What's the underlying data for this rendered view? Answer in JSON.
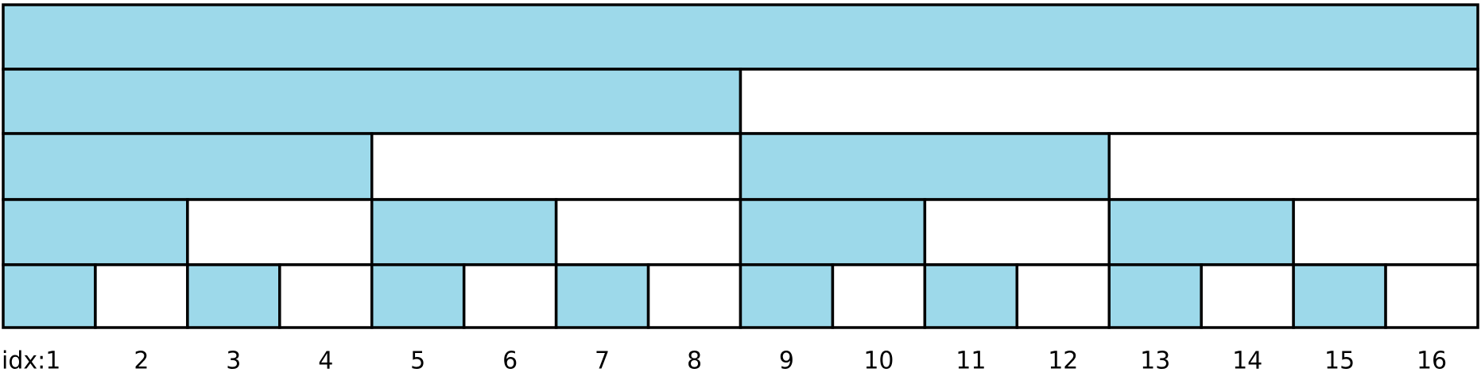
{
  "labels": [
    "idx:1",
    "2",
    "3",
    "4",
    "5",
    "6",
    "7",
    "8",
    "9",
    "10",
    "11",
    "12",
    "13",
    "14",
    "15",
    "16"
  ]
}
